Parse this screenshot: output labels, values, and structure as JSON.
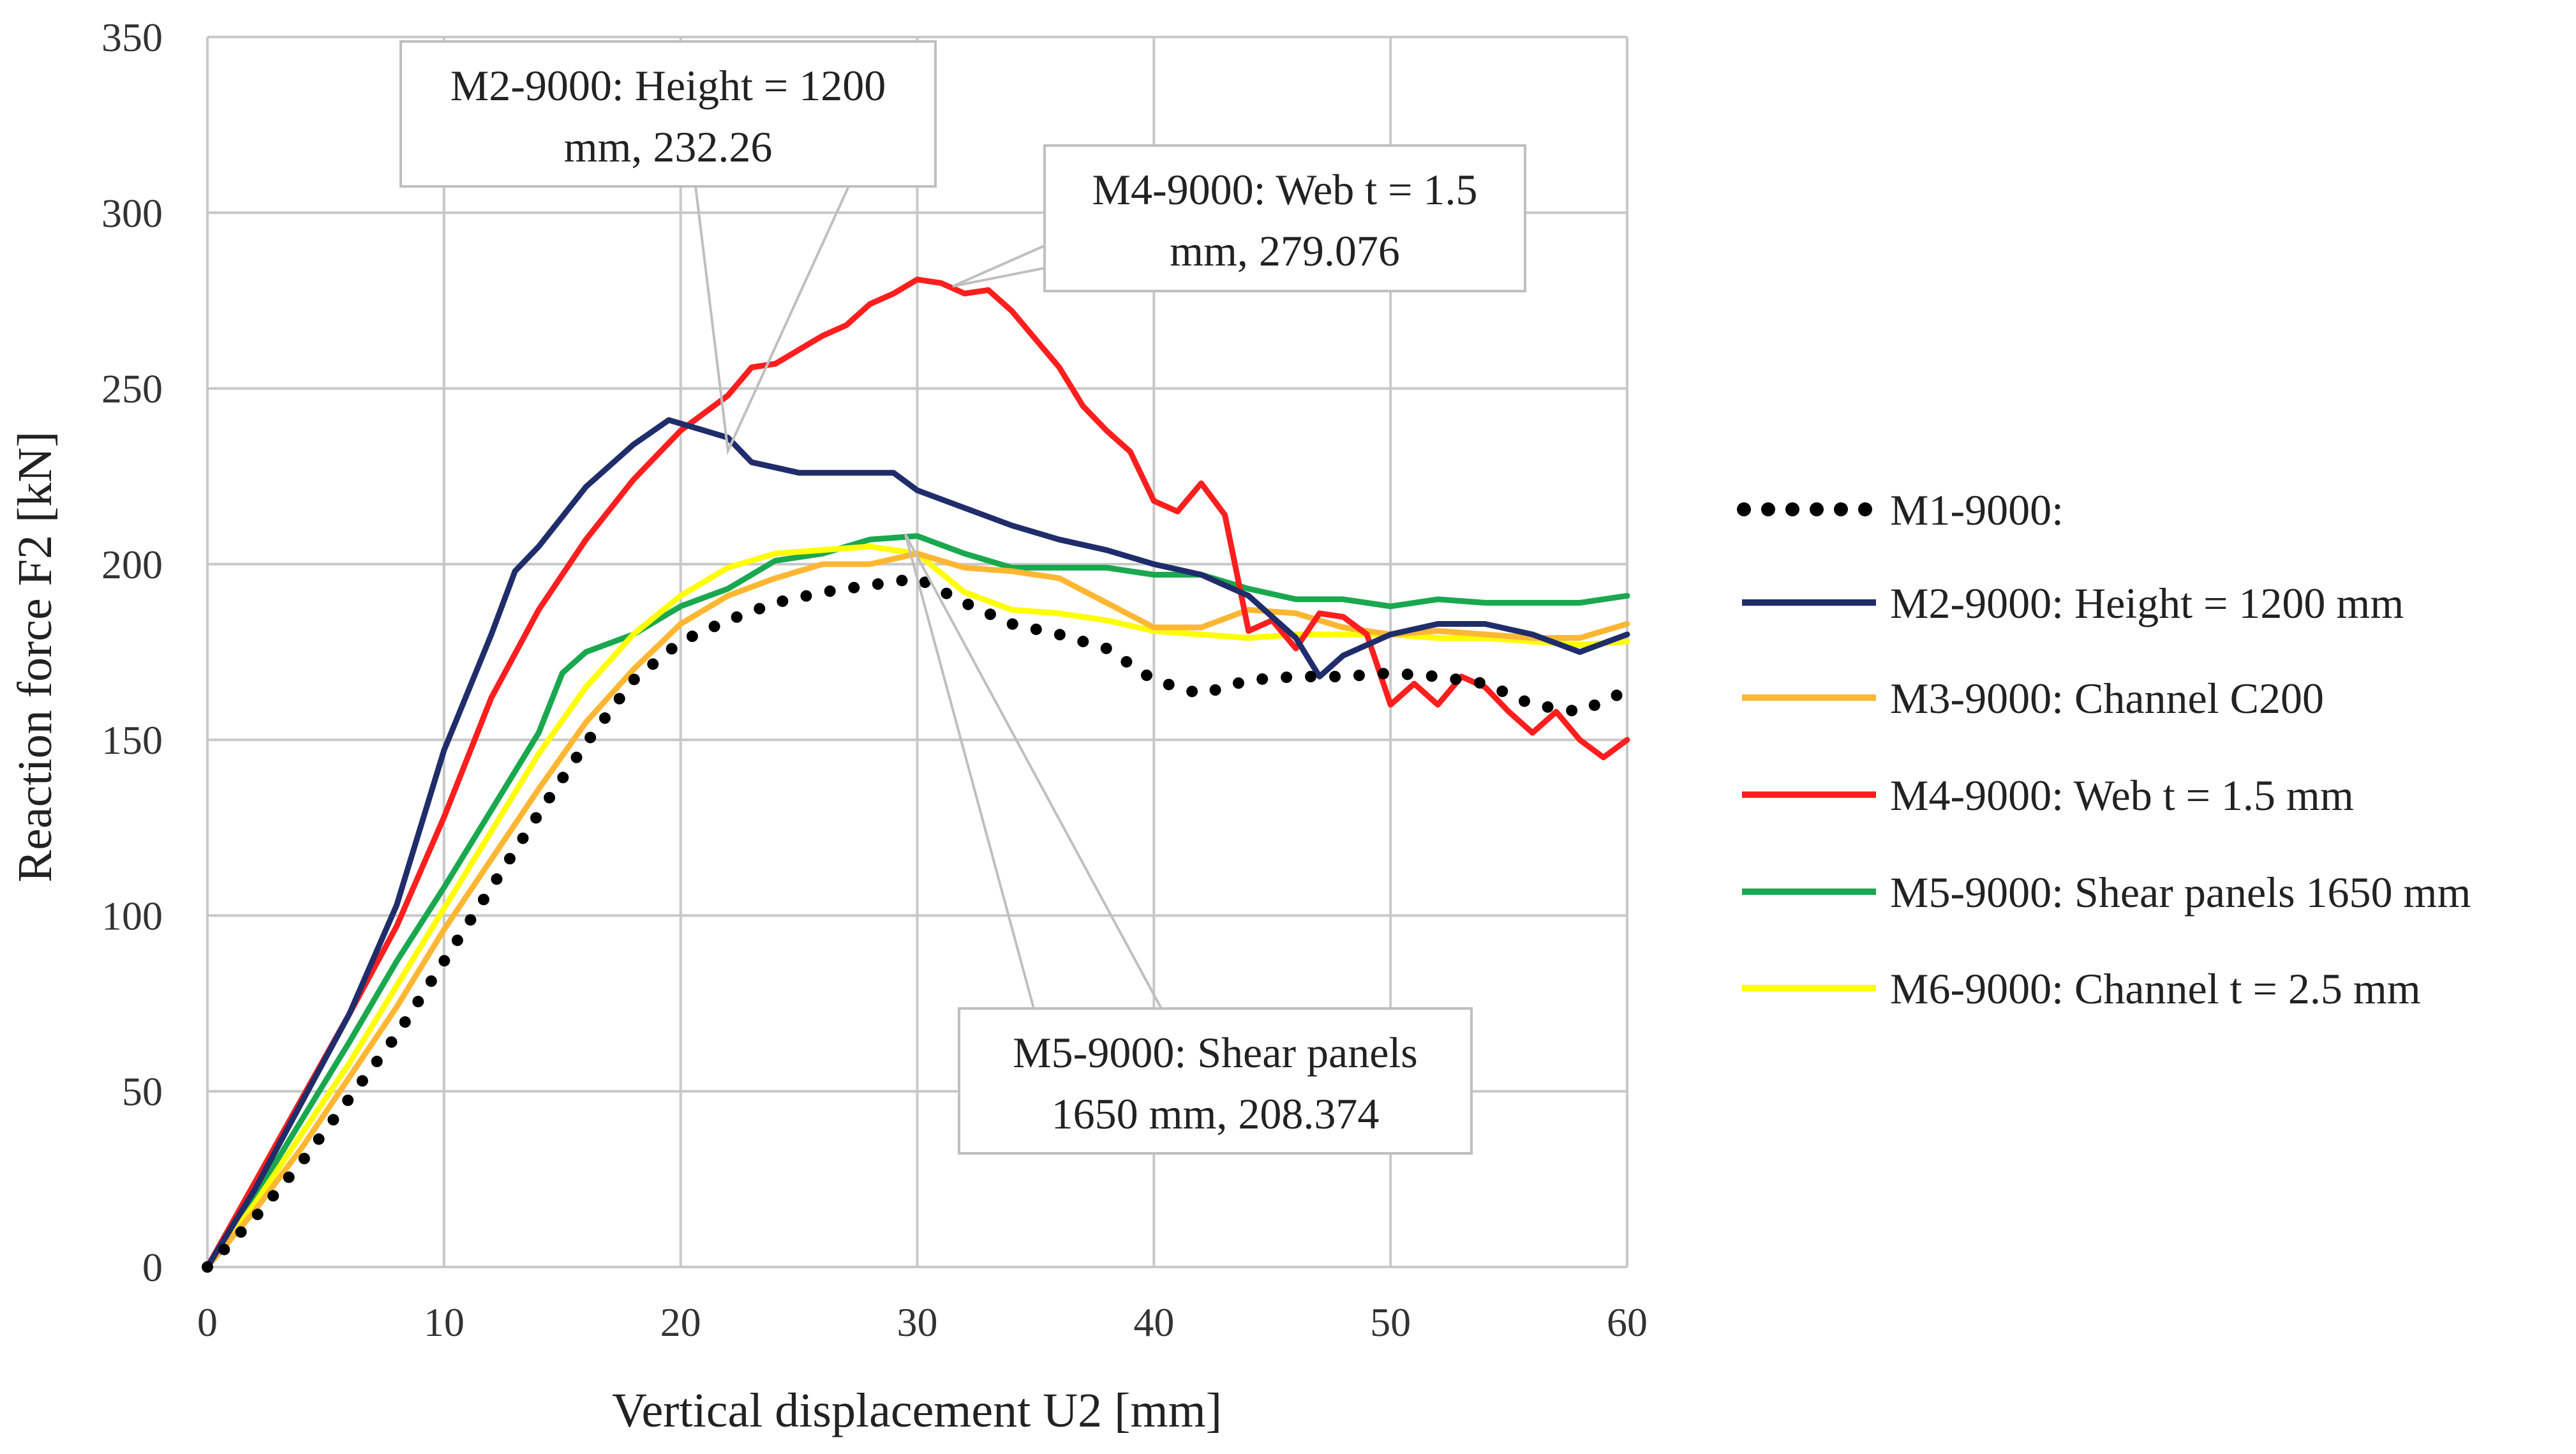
{
  "chart_data": {
    "type": "line",
    "title": "",
    "xlabel": "Vertical displacement U2 [mm]",
    "ylabel": "Reaction force F2 [kN]",
    "xlim": [
      0,
      60
    ],
    "ylim": [
      0,
      350
    ],
    "xticks": [
      "0",
      "10",
      "20",
      "30",
      "40",
      "50",
      "60"
    ],
    "yticks": [
      "0",
      "50",
      "100",
      "150",
      "200",
      "250",
      "300",
      "350"
    ],
    "grid": true,
    "legend_position": "right",
    "series": [
      {
        "name": "M1-9000:",
        "color": "#000000",
        "style": "dotted",
        "points": [
          [
            0,
            0
          ],
          [
            2,
            14
          ],
          [
            4,
            30
          ],
          [
            6,
            48
          ],
          [
            8,
            66
          ],
          [
            10,
            87
          ],
          [
            12,
            108
          ],
          [
            14,
            129
          ],
          [
            16,
            149
          ],
          [
            18,
            167
          ],
          [
            20,
            178
          ],
          [
            22,
            184
          ],
          [
            24,
            189
          ],
          [
            26,
            192
          ],
          [
            28,
            194
          ],
          [
            30,
            196
          ],
          [
            32,
            189
          ],
          [
            34,
            183
          ],
          [
            36,
            180
          ],
          [
            38,
            176
          ],
          [
            40,
            167
          ],
          [
            42,
            163
          ],
          [
            44,
            167
          ],
          [
            46,
            168
          ],
          [
            48,
            168
          ],
          [
            50,
            169
          ],
          [
            52,
            168
          ],
          [
            54,
            166
          ],
          [
            56,
            160
          ],
          [
            58,
            158
          ],
          [
            60,
            164
          ]
        ]
      },
      {
        "name": "M2-9000: Height = 1200 mm",
        "color": "#1f2d6b",
        "style": "solid",
        "points": [
          [
            0,
            0
          ],
          [
            2,
            22
          ],
          [
            4,
            47
          ],
          [
            6,
            72
          ],
          [
            8,
            103
          ],
          [
            10,
            147
          ],
          [
            12,
            180
          ],
          [
            13,
            198
          ],
          [
            14,
            205
          ],
          [
            16,
            222
          ],
          [
            18,
            234
          ],
          [
            19.5,
            241
          ],
          [
            21,
            238
          ],
          [
            22,
            236
          ],
          [
            23,
            229
          ],
          [
            25,
            226
          ],
          [
            27,
            226
          ],
          [
            29,
            226
          ],
          [
            30,
            221
          ],
          [
            32,
            216
          ],
          [
            34,
            211
          ],
          [
            36,
            207
          ],
          [
            38,
            204
          ],
          [
            40,
            200
          ],
          [
            42,
            197
          ],
          [
            44,
            191
          ],
          [
            46,
            179
          ],
          [
            47,
            168
          ],
          [
            48,
            174
          ],
          [
            50,
            180
          ],
          [
            52,
            183
          ],
          [
            54,
            183
          ],
          [
            56,
            180
          ],
          [
            58,
            175
          ],
          [
            60,
            180
          ]
        ]
      },
      {
        "name": "M3-9000: Channel C200",
        "color": "#ffb733",
        "style": "solid",
        "points": [
          [
            0,
            0
          ],
          [
            2,
            16
          ],
          [
            4,
            34
          ],
          [
            6,
            54
          ],
          [
            8,
            74
          ],
          [
            10,
            96
          ],
          [
            12,
            116
          ],
          [
            14,
            136
          ],
          [
            16,
            155
          ],
          [
            18,
            170
          ],
          [
            20,
            183
          ],
          [
            22,
            191
          ],
          [
            24,
            196
          ],
          [
            26,
            200
          ],
          [
            28,
            200
          ],
          [
            30,
            203
          ],
          [
            32,
            199
          ],
          [
            34,
            198
          ],
          [
            36,
            196
          ],
          [
            38,
            189
          ],
          [
            40,
            182
          ],
          [
            42,
            182
          ],
          [
            44,
            187
          ],
          [
            46,
            186
          ],
          [
            48,
            182
          ],
          [
            50,
            180
          ],
          [
            52,
            181
          ],
          [
            54,
            180
          ],
          [
            56,
            179
          ],
          [
            58,
            179
          ],
          [
            60,
            183
          ]
        ]
      },
      {
        "name": "M4-9000: Web t = 1.5 mm",
        "color": "#ff1e1e",
        "style": "solid",
        "points": [
          [
            0,
            0
          ],
          [
            2,
            24
          ],
          [
            4,
            48
          ],
          [
            6,
            72
          ],
          [
            8,
            97
          ],
          [
            10,
            128
          ],
          [
            12,
            162
          ],
          [
            14,
            187
          ],
          [
            16,
            207
          ],
          [
            18,
            224
          ],
          [
            20,
            238
          ],
          [
            22,
            248
          ],
          [
            23,
            256
          ],
          [
            24,
            257
          ],
          [
            26,
            265
          ],
          [
            27,
            268
          ],
          [
            28,
            274
          ],
          [
            29,
            277
          ],
          [
            30,
            281
          ],
          [
            31,
            280
          ],
          [
            32,
            277
          ],
          [
            33,
            278
          ],
          [
            34,
            272
          ],
          [
            35,
            264
          ],
          [
            36,
            256
          ],
          [
            37,
            245
          ],
          [
            38,
            238
          ],
          [
            39,
            232
          ],
          [
            40,
            218
          ],
          [
            41,
            215
          ],
          [
            42,
            223
          ],
          [
            43,
            214
          ],
          [
            44,
            181
          ],
          [
            45,
            184
          ],
          [
            46,
            176
          ],
          [
            47,
            186
          ],
          [
            48,
            185
          ],
          [
            49,
            180
          ],
          [
            50,
            160
          ],
          [
            51,
            166
          ],
          [
            52,
            160
          ],
          [
            53,
            168
          ],
          [
            54,
            165
          ],
          [
            55,
            158
          ],
          [
            56,
            152
          ],
          [
            57,
            158
          ],
          [
            58,
            150
          ],
          [
            59,
            145
          ],
          [
            60,
            150
          ]
        ]
      },
      {
        "name": "M5-9000: Shear panels 1650 mm",
        "color": "#1aa84f",
        "style": "solid",
        "points": [
          [
            0,
            0
          ],
          [
            2,
            20
          ],
          [
            4,
            42
          ],
          [
            6,
            64
          ],
          [
            8,
            87
          ],
          [
            10,
            108
          ],
          [
            12,
            130
          ],
          [
            14,
            152
          ],
          [
            15,
            169
          ],
          [
            16,
            175
          ],
          [
            18,
            180
          ],
          [
            20,
            188
          ],
          [
            22,
            193
          ],
          [
            24,
            201
          ],
          [
            26,
            203
          ],
          [
            28,
            207
          ],
          [
            30,
            208
          ],
          [
            32,
            203
          ],
          [
            34,
            199
          ],
          [
            36,
            199
          ],
          [
            38,
            199
          ],
          [
            40,
            197
          ],
          [
            42,
            197
          ],
          [
            44,
            193
          ],
          [
            46,
            190
          ],
          [
            48,
            190
          ],
          [
            50,
            188
          ],
          [
            52,
            190
          ],
          [
            54,
            189
          ],
          [
            56,
            189
          ],
          [
            58,
            189
          ],
          [
            60,
            191
          ]
        ]
      },
      {
        "name": "M6-9000: Channel t = 2.5 mm",
        "color": "#ffff00",
        "style": "solid",
        "points": [
          [
            0,
            0
          ],
          [
            2,
            18
          ],
          [
            4,
            38
          ],
          [
            6,
            58
          ],
          [
            8,
            80
          ],
          [
            10,
            102
          ],
          [
            12,
            124
          ],
          [
            14,
            146
          ],
          [
            16,
            165
          ],
          [
            18,
            180
          ],
          [
            20,
            191
          ],
          [
            22,
            199
          ],
          [
            24,
            203
          ],
          [
            26,
            204
          ],
          [
            28,
            205
          ],
          [
            30,
            203
          ],
          [
            32,
            192
          ],
          [
            34,
            187
          ],
          [
            36,
            186
          ],
          [
            38,
            184
          ],
          [
            40,
            181
          ],
          [
            42,
            180
          ],
          [
            44,
            179
          ],
          [
            46,
            180
          ],
          [
            48,
            180
          ],
          [
            50,
            180
          ],
          [
            52,
            179
          ],
          [
            54,
            179
          ],
          [
            56,
            178
          ],
          [
            58,
            177
          ],
          [
            60,
            178
          ]
        ]
      }
    ],
    "annotations": [
      {
        "lines": [
          "M2-9000: Height = 1200",
          "mm, 232.26"
        ],
        "x": 22,
        "y": 232.26
      },
      {
        "lines": [
          "M4-9000: Web t = 1.5",
          "mm, 279.076"
        ],
        "x": 31.5,
        "y": 279.076
      },
      {
        "lines": [
          "M5-9000: Shear panels",
          "1650 mm, 208.374"
        ],
        "x": 29.5,
        "y": 208.374
      }
    ]
  }
}
